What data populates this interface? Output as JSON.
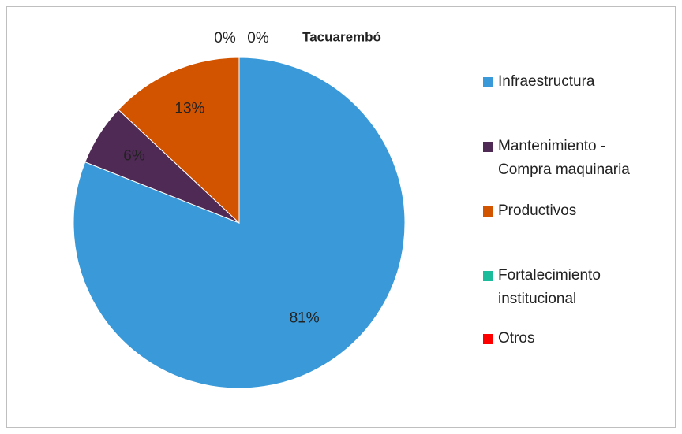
{
  "chart_data": {
    "type": "pie",
    "title": "Tacuarembó",
    "categories": [
      "Infraestructura",
      "Mantenimiento - Compra maquinaria",
      "Productivos",
      "Fortalecimiento institucional",
      "Otros"
    ],
    "values": [
      81,
      6,
      13,
      0,
      0
    ],
    "value_labels": [
      "81%",
      "6%",
      "13%",
      "0%",
      "0%"
    ],
    "colors": [
      "#3a9ad9",
      "#4f2a55",
      "#d35400",
      "#1abc9c",
      "#ff0000"
    ],
    "legend": "right"
  }
}
